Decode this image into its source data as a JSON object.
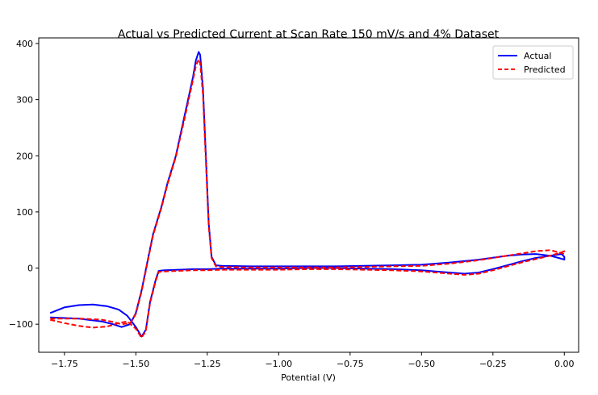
{
  "chart_data": {
    "type": "line",
    "title": "Actual vs Predicted Current at Scan Rate 150 mV/s and 4% Dataset",
    "xlabel": "Potential (V)",
    "ylabel": "",
    "xlim": [
      -1.84,
      0.05
    ],
    "ylim": [
      -150,
      410
    ],
    "x_ticks": [
      -1.75,
      -1.5,
      -1.25,
      -1.0,
      -0.75,
      -0.5,
      -0.25,
      0.0
    ],
    "x_tick_labels": [
      "−1.75",
      "−1.50",
      "−1.25",
      "−1.00",
      "−0.75",
      "−0.50",
      "−0.25",
      "0.00"
    ],
    "y_ticks": [
      -100,
      0,
      100,
      200,
      300,
      400
    ],
    "y_tick_labels": [
      "−100",
      "0",
      "100",
      "200",
      "300",
      "400"
    ],
    "grid": false,
    "legend": {
      "position": "top-right",
      "entries": [
        {
          "label": "Actual",
          "color": "#0000ff",
          "style": "solid"
        },
        {
          "label": "Predicted",
          "color": "#ff0000",
          "style": "dashed"
        }
      ]
    },
    "series": [
      {
        "name": "Actual",
        "color": "#0000ff",
        "style": "solid",
        "points": [
          [
            -1.8,
            -80
          ],
          [
            -1.75,
            -70
          ],
          [
            -1.7,
            -66
          ],
          [
            -1.65,
            -65
          ],
          [
            -1.6,
            -68
          ],
          [
            -1.56,
            -74
          ],
          [
            -1.53,
            -85
          ],
          [
            -1.5,
            -105
          ],
          [
            -1.48,
            -122
          ],
          [
            -1.465,
            -110
          ],
          [
            -1.45,
            -60
          ],
          [
            -1.43,
            -20
          ],
          [
            -1.42,
            -5
          ],
          [
            -1.4,
            -4
          ],
          [
            -1.35,
            -3
          ],
          [
            -1.3,
            -2
          ],
          [
            -1.25,
            -2
          ],
          [
            -1.2,
            -1
          ],
          [
            -1.1,
            -1
          ],
          [
            -1.0,
            -1
          ],
          [
            -0.9,
            0
          ],
          [
            -0.8,
            0
          ],
          [
            -0.7,
            -1
          ],
          [
            -0.6,
            -2
          ],
          [
            -0.5,
            -4
          ],
          [
            -0.45,
            -6
          ],
          [
            -0.4,
            -8
          ],
          [
            -0.35,
            -10
          ],
          [
            -0.3,
            -8
          ],
          [
            -0.25,
            -2
          ],
          [
            -0.2,
            5
          ],
          [
            -0.15,
            12
          ],
          [
            -0.1,
            18
          ],
          [
            -0.05,
            22
          ],
          [
            -0.01,
            25
          ],
          [
            0.0,
            20
          ],
          [
            0.0,
            15
          ],
          [
            -0.02,
            18
          ],
          [
            -0.05,
            22
          ],
          [
            -0.1,
            25
          ],
          [
            -0.15,
            24
          ],
          [
            -0.2,
            22
          ],
          [
            -0.3,
            15
          ],
          [
            -0.4,
            10
          ],
          [
            -0.5,
            6
          ],
          [
            -0.6,
            5
          ],
          [
            -0.7,
            4
          ],
          [
            -0.8,
            3
          ],
          [
            -0.9,
            3
          ],
          [
            -1.0,
            3
          ],
          [
            -1.1,
            3
          ],
          [
            -1.2,
            4
          ],
          [
            -1.22,
            5
          ],
          [
            -1.235,
            20
          ],
          [
            -1.245,
            80
          ],
          [
            -1.255,
            200
          ],
          [
            -1.265,
            320
          ],
          [
            -1.275,
            380
          ],
          [
            -1.28,
            385
          ],
          [
            -1.29,
            370
          ],
          [
            -1.3,
            340
          ],
          [
            -1.33,
            270
          ],
          [
            -1.36,
            200
          ],
          [
            -1.39,
            150
          ],
          [
            -1.41,
            110
          ],
          [
            -1.44,
            60
          ],
          [
            -1.46,
            10
          ],
          [
            -1.48,
            -40
          ],
          [
            -1.5,
            -80
          ],
          [
            -1.52,
            -100
          ],
          [
            -1.55,
            -105
          ],
          [
            -1.58,
            -100
          ],
          [
            -1.62,
            -95
          ],
          [
            -1.7,
            -90
          ],
          [
            -1.8,
            -88
          ]
        ]
      },
      {
        "name": "Predicted",
        "color": "#ff0000",
        "style": "dashed",
        "points": [
          [
            -1.8,
            -92
          ],
          [
            -1.75,
            -98
          ],
          [
            -1.7,
            -103
          ],
          [
            -1.65,
            -106
          ],
          [
            -1.6,
            -104
          ],
          [
            -1.56,
            -98
          ],
          [
            -1.53,
            -95
          ],
          [
            -1.5,
            -108
          ],
          [
            -1.48,
            -124
          ],
          [
            -1.465,
            -112
          ],
          [
            -1.45,
            -62
          ],
          [
            -1.43,
            -22
          ],
          [
            -1.42,
            -7
          ],
          [
            -1.4,
            -6
          ],
          [
            -1.35,
            -5
          ],
          [
            -1.3,
            -4
          ],
          [
            -1.25,
            -4
          ],
          [
            -1.2,
            -3
          ],
          [
            -1.1,
            -3
          ],
          [
            -1.0,
            -3
          ],
          [
            -0.9,
            -2
          ],
          [
            -0.8,
            -2
          ],
          [
            -0.7,
            -3
          ],
          [
            -0.6,
            -4
          ],
          [
            -0.5,
            -6
          ],
          [
            -0.45,
            -8
          ],
          [
            -0.4,
            -10
          ],
          [
            -0.35,
            -12
          ],
          [
            -0.3,
            -10
          ],
          [
            -0.25,
            -4
          ],
          [
            -0.2,
            3
          ],
          [
            -0.15,
            10
          ],
          [
            -0.1,
            16
          ],
          [
            -0.05,
            22
          ],
          [
            -0.01,
            28
          ],
          [
            0.0,
            30
          ],
          [
            0.0,
            25
          ],
          [
            -0.02,
            28
          ],
          [
            -0.05,
            32
          ],
          [
            -0.1,
            30
          ],
          [
            -0.15,
            26
          ],
          [
            -0.2,
            22
          ],
          [
            -0.3,
            14
          ],
          [
            -0.4,
            8
          ],
          [
            -0.5,
            4
          ],
          [
            -0.6,
            3
          ],
          [
            -0.7,
            2
          ],
          [
            -0.8,
            1
          ],
          [
            -0.9,
            1
          ],
          [
            -1.0,
            1
          ],
          [
            -1.1,
            1
          ],
          [
            -1.2,
            2
          ],
          [
            -1.22,
            3
          ],
          [
            -1.235,
            18
          ],
          [
            -1.245,
            75
          ],
          [
            -1.255,
            190
          ],
          [
            -1.265,
            310
          ],
          [
            -1.275,
            365
          ],
          [
            -1.28,
            372
          ],
          [
            -1.29,
            360
          ],
          [
            -1.3,
            335
          ],
          [
            -1.33,
            265
          ],
          [
            -1.36,
            198
          ],
          [
            -1.39,
            148
          ],
          [
            -1.41,
            108
          ],
          [
            -1.44,
            58
          ],
          [
            -1.46,
            8
          ],
          [
            -1.48,
            -42
          ],
          [
            -1.5,
            -82
          ],
          [
            -1.52,
            -98
          ],
          [
            -1.55,
            -100
          ],
          [
            -1.58,
            -96
          ],
          [
            -1.62,
            -92
          ],
          [
            -1.7,
            -90
          ],
          [
            -1.8,
            -90
          ]
        ]
      }
    ]
  }
}
